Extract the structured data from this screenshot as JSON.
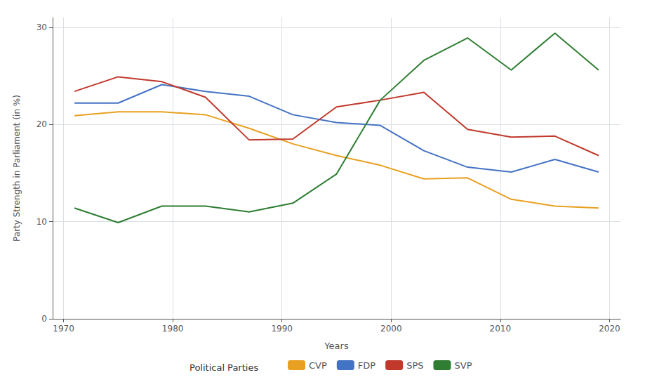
{
  "chart_data": {
    "type": "line",
    "x": [
      1971,
      1975,
      1979,
      1983,
      1987,
      1991,
      1995,
      1999,
      2003,
      2007,
      2011,
      2015,
      2019
    ],
    "series": [
      {
        "name": "CVP",
        "color": "#E8A020",
        "values": [
          20.9,
          21.3,
          21.3,
          21.0,
          19.6,
          18.0,
          16.8,
          15.8,
          14.4,
          14.5,
          12.3,
          11.6,
          11.4
        ]
      },
      {
        "name": "FDP",
        "color": "#4472C4",
        "values": [
          22.2,
          22.2,
          24.1,
          23.4,
          22.9,
          21.0,
          20.2,
          19.9,
          17.3,
          15.6,
          15.1,
          16.4,
          15.1
        ]
      },
      {
        "name": "SPS",
        "color": "#C0392B",
        "values": [
          23.4,
          24.9,
          24.4,
          22.8,
          18.4,
          18.5,
          21.8,
          22.5,
          23.3,
          19.5,
          18.7,
          18.8,
          16.8
        ]
      },
      {
        "name": "SVP",
        "color": "#2E7D32",
        "values": [
          11.4,
          9.9,
          11.6,
          11.6,
          11.0,
          11.9,
          14.9,
          22.5,
          26.6,
          28.9,
          25.6,
          29.4,
          25.6
        ]
      }
    ],
    "xlabel": "Years",
    "ylabel": "Party Strength in Parliament (in %)",
    "xlim": [
      1969,
      2021
    ],
    "ylim": [
      0,
      31
    ],
    "xticks": [
      1970,
      1980,
      1990,
      2000,
      2010,
      2020
    ],
    "yticks": [
      0,
      10,
      20,
      30
    ],
    "grid": true,
    "legend": "bottom",
    "legend_title": "Political Parties"
  }
}
